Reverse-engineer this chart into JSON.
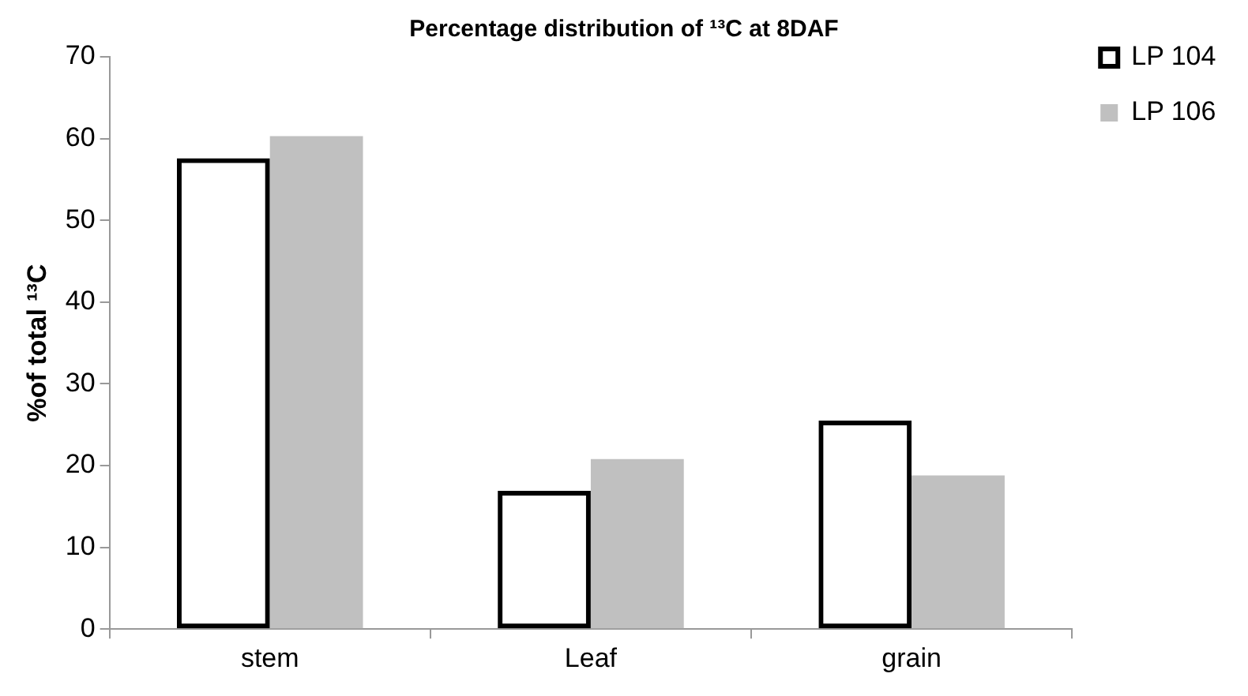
{
  "chart_data": {
    "type": "bar",
    "title": "Percentage distribution of ¹³C at 8DAF",
    "ylabel": "%of total ¹³C",
    "categories": [
      "stem",
      "Leaf",
      "grain"
    ],
    "series": [
      {
        "name": "LP 104",
        "color": "#000000",
        "values": [
          57.6,
          16.9,
          25.5
        ]
      },
      {
        "name": "LP 106",
        "color": "#c0c0c0",
        "values": [
          60.3,
          20.8,
          18.8
        ]
      }
    ],
    "ylim": [
      0,
      70
    ],
    "yticks": [
      0,
      10,
      20,
      30,
      40,
      50,
      60,
      70
    ],
    "grid": false,
    "legend": "top right"
  }
}
